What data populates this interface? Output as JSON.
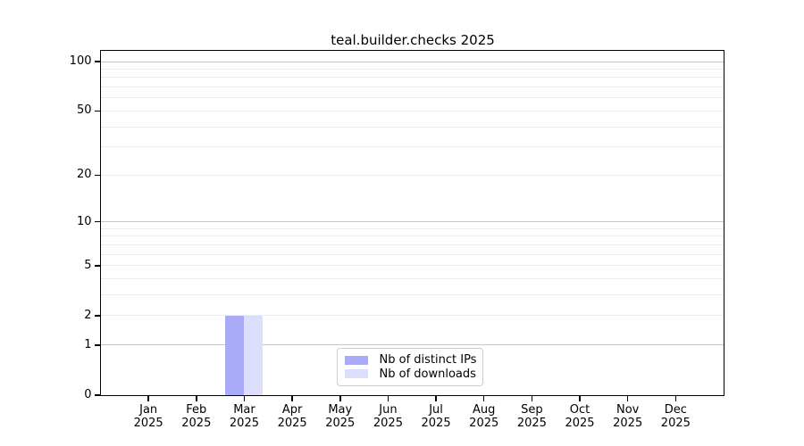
{
  "chart_data": {
    "type": "bar",
    "title": "teal.builder.checks 2025",
    "x_categories": [
      "Jan",
      "Feb",
      "Mar",
      "Apr",
      "May",
      "Jun",
      "Jul",
      "Aug",
      "Sep",
      "Oct",
      "Nov",
      "Dec"
    ],
    "x_year": "2025",
    "xlabel": "",
    "ylabel": "",
    "y_ticks": [
      0,
      1,
      2,
      5,
      10,
      20,
      50,
      100
    ],
    "y_minor_gridlines": [
      2,
      3,
      4,
      5,
      6,
      7,
      8,
      9,
      20,
      30,
      40,
      50,
      60,
      70,
      80,
      90
    ],
    "y_major_gridlines": [
      1,
      10,
      100
    ],
    "y_scale": "log1p",
    "ylim": [
      0,
      116
    ],
    "grid": true,
    "legend_position": "inside-bottom-center",
    "series": [
      {
        "name": "Nb of distinct IPs",
        "color": "#a9aaf8",
        "values": [
          0,
          0,
          2,
          0,
          0,
          0,
          0,
          0,
          0,
          0,
          0,
          0
        ]
      },
      {
        "name": "Nb of downloads",
        "color": "#dcdefb",
        "values": [
          0,
          0,
          2,
          0,
          0,
          0,
          0,
          0,
          0,
          0,
          0,
          0
        ]
      }
    ]
  },
  "colors": {
    "background": "#ffffff",
    "spine": "#000000",
    "grid_major": "#c6c6c6",
    "grid_minor": "#ececec",
    "text": "#000000"
  }
}
